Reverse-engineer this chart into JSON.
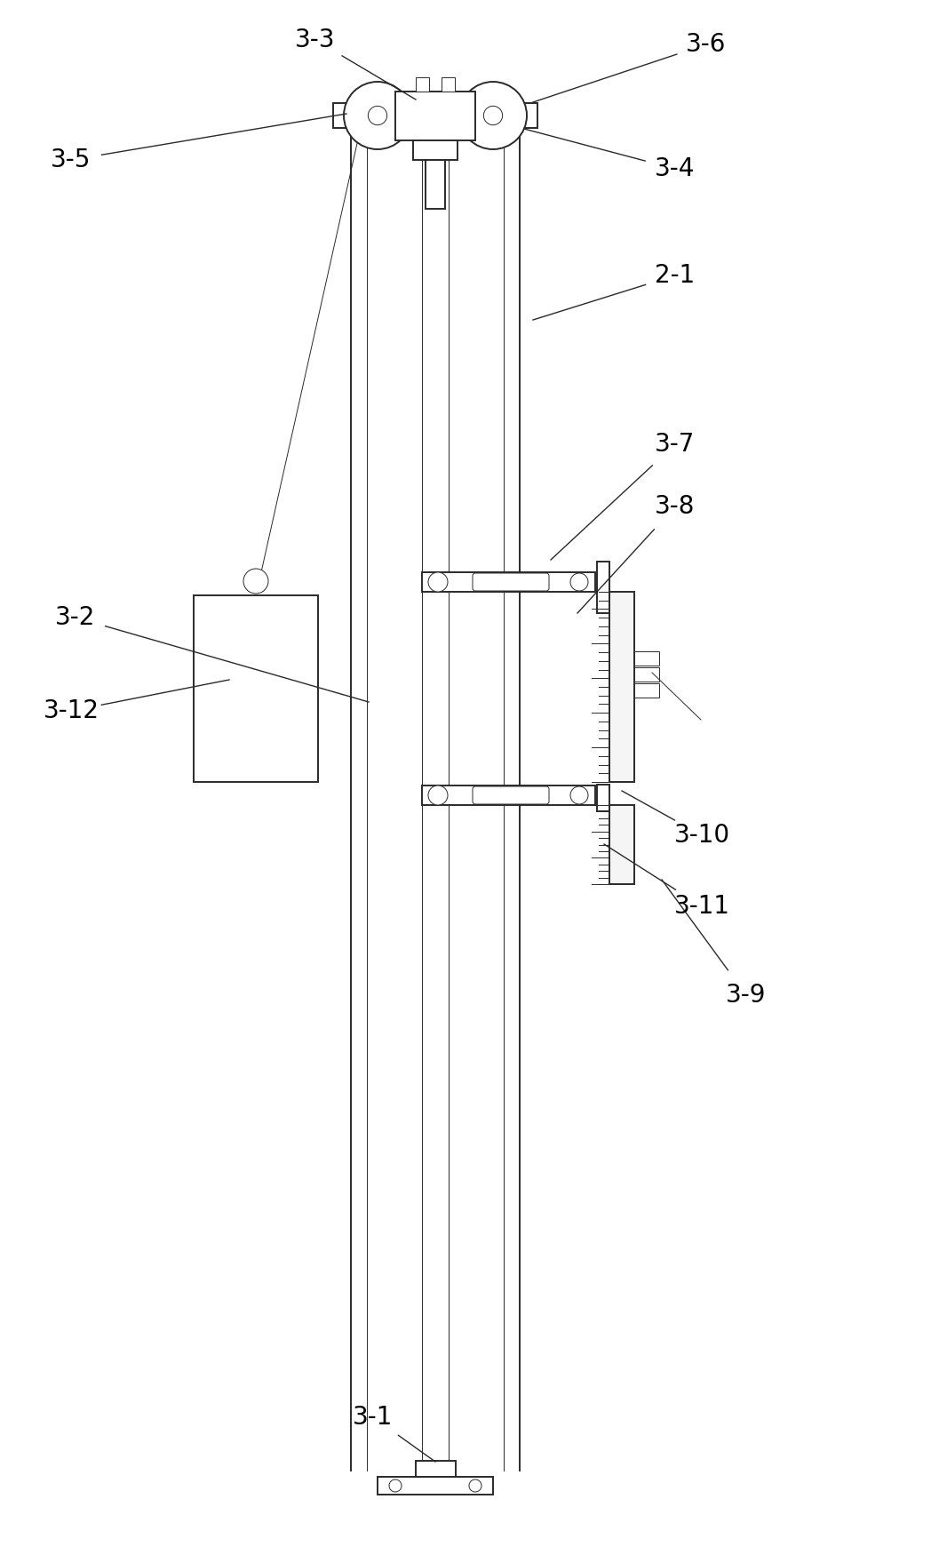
{
  "bg_color": "#ffffff",
  "line_color": "#2a2a2a",
  "lw_main": 1.4,
  "lw_thin": 0.7,
  "label_fontsize": 20,
  "label_color": "#000000",
  "figsize": [
    10.48,
    17.5
  ],
  "dpi": 100
}
